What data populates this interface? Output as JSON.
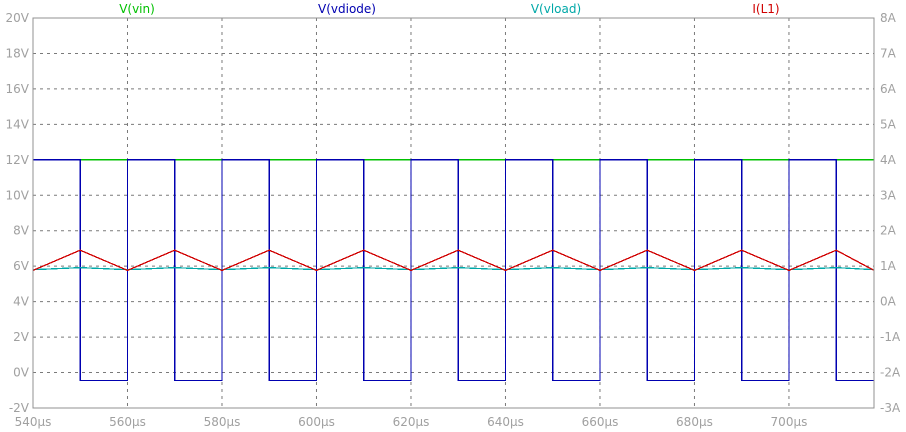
{
  "chart_data": {
    "type": "line",
    "x_unit": "µs",
    "x_ticks": [
      "540µs",
      "560µs",
      "580µs",
      "600µs",
      "620µs",
      "640µs",
      "660µs",
      "680µs",
      "700µs"
    ],
    "y_ticks_left": [
      "20V",
      "18V",
      "16V",
      "14V",
      "12V",
      "10V",
      "8V",
      "6V",
      "4V",
      "2V",
      "0V",
      "-2V"
    ],
    "y_ticks_right": [
      "8A",
      "7A",
      "6A",
      "5A",
      "4A",
      "3A",
      "2A",
      "1A",
      "0A",
      "-1A",
      "-2A",
      "-3A"
    ],
    "xlim": [
      540,
      718
    ],
    "ylim_left": [
      -2,
      20
    ],
    "ylim_right": [
      -3,
      8
    ],
    "grid": true,
    "series": [
      {
        "name": "V(vin)",
        "axis": "left",
        "color": "#00c000",
        "kind": "constant",
        "value": 12
      },
      {
        "name": "V(vdiode)",
        "axis": "left",
        "color": "#0000b0",
        "kind": "square",
        "period": 20,
        "duty": 0.5,
        "t_start": 540,
        "high": 12,
        "low": -0.45
      },
      {
        "name": "V(vload)",
        "axis": "left",
        "color": "#00a8a8",
        "kind": "ripple",
        "period": 20,
        "t_start": 540,
        "min": 5.8,
        "max": 5.92
      },
      {
        "name": "I(L1)",
        "axis": "right",
        "color": "#d00000",
        "kind": "triangle",
        "period": 20,
        "duty": 0.5,
        "t_start": 540,
        "min": 0.88,
        "max": 1.45
      }
    ]
  }
}
